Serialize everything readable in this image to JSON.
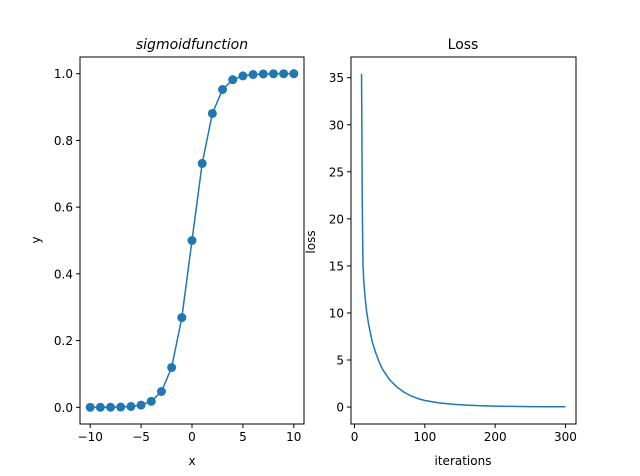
{
  "colors": {
    "series": "#1f77b4",
    "axes": "#000000",
    "background": "#ffffff"
  },
  "chart_data": [
    {
      "type": "line",
      "markers": true,
      "title": "sigmoidfunction",
      "title_style": "italic",
      "xlabel": "x",
      "ylabel": "y",
      "xlim": [
        -11,
        11
      ],
      "ylim": [
        -0.05,
        1.05
      ],
      "xticks": [
        -10,
        -5,
        0,
        5,
        10
      ],
      "xtick_labels": [
        "−10",
        "−5",
        "0",
        "5",
        "10"
      ],
      "yticks": [
        0.0,
        0.2,
        0.4,
        0.6,
        0.8,
        1.0
      ],
      "ytick_labels": [
        "0.0",
        "0.2",
        "0.4",
        "0.6",
        "0.8",
        "1.0"
      ],
      "grid": false,
      "series": [
        {
          "x": [
            -10,
            -9,
            -8,
            -7,
            -6,
            -5,
            -4,
            -3,
            -2,
            -1,
            0,
            1,
            2,
            3,
            4,
            5,
            6,
            7,
            8,
            9,
            10
          ],
          "y": [
            0.0,
            0.0001,
            0.0003,
            0.0009,
            0.0025,
            0.0067,
            0.018,
            0.0474,
            0.1192,
            0.2689,
            0.5,
            0.7311,
            0.8808,
            0.9526,
            0.982,
            0.9933,
            0.9975,
            0.9991,
            0.9997,
            0.9999,
            1.0
          ]
        }
      ]
    },
    {
      "type": "line",
      "markers": false,
      "title": "Loss",
      "xlabel": "iterations",
      "ylabel": "loss",
      "xlim": [
        -5,
        315
      ],
      "ylim": [
        -1.8,
        37.2
      ],
      "xticks": [
        0,
        100,
        200,
        300
      ],
      "xtick_labels": [
        "0",
        "100",
        "200",
        "300"
      ],
      "yticks": [
        0,
        5,
        10,
        15,
        20,
        25,
        30,
        35
      ],
      "ytick_labels": [
        "0",
        "5",
        "10",
        "15",
        "20",
        "25",
        "30",
        "35"
      ],
      "grid": false,
      "series": [
        {
          "x": [
            10,
            11,
            12,
            13,
            14,
            15,
            17,
            20,
            25,
            30,
            35,
            40,
            50,
            60,
            70,
            80,
            90,
            100,
            120,
            140,
            160,
            180,
            200,
            225,
            250,
            275,
            300
          ],
          "y": [
            35.4,
            22.0,
            15.2,
            13.6,
            12.6,
            11.7,
            10.3,
            8.8,
            7.0,
            5.8,
            4.8,
            4.0,
            2.9,
            2.15,
            1.6,
            1.2,
            0.9,
            0.7,
            0.45,
            0.3,
            0.2,
            0.14,
            0.1,
            0.07,
            0.05,
            0.04,
            0.03
          ]
        }
      ]
    }
  ]
}
